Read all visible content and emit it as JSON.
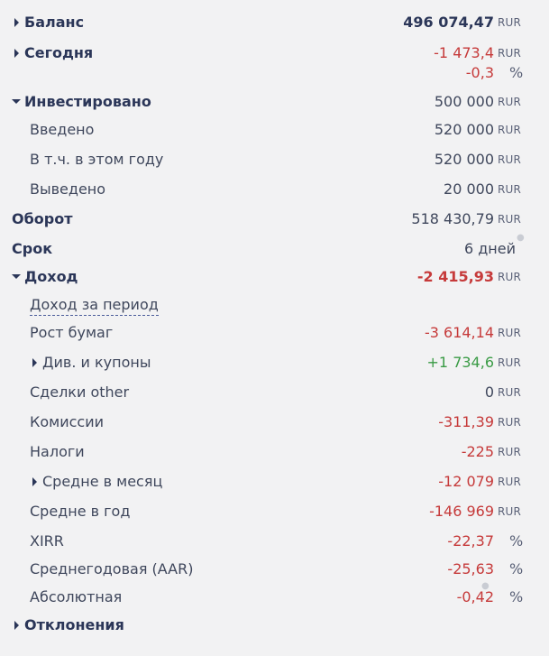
{
  "rows": {
    "balance": {
      "label": "Баланс",
      "value": "496 074,47",
      "unit": "RUR"
    },
    "today": {
      "label": "Сегодня",
      "value": "-1 473,4",
      "unit": "RUR",
      "value2": "-0,3",
      "unit2": "%"
    },
    "invested": {
      "label": "Инвестировано",
      "value": "500 000",
      "unit": "RUR"
    },
    "deposited": {
      "label": "Введено",
      "value": "520 000",
      "unit": "RUR"
    },
    "this_year": {
      "label": "В т.ч. в этом году",
      "value": "520 000",
      "unit": "RUR"
    },
    "withdrawn": {
      "label": "Выведено",
      "value": "20 000",
      "unit": "RUR"
    },
    "turnover": {
      "label": "Оборот",
      "value": "518 430,79",
      "unit": "RUR"
    },
    "term": {
      "label": "Срок",
      "value": "6 дней"
    },
    "income": {
      "label": "Доход",
      "value": "-2 415,93",
      "unit": "RUR"
    },
    "income_period": {
      "label": "Доход за период"
    },
    "securities": {
      "label": "Рост бумаг",
      "value": "-3 614,14",
      "unit": "RUR"
    },
    "dividends": {
      "label": "Див. и купоны",
      "value": "+1 734,6",
      "unit": "RUR"
    },
    "other": {
      "label": "Сделки other",
      "value": "0",
      "unit": "RUR"
    },
    "commissions": {
      "label": "Комиссии",
      "value": "-311,39",
      "unit": "RUR"
    },
    "taxes": {
      "label": "Налоги",
      "value": "-225",
      "unit": "RUR"
    },
    "avg_month": {
      "label": "Средне в месяц",
      "value": "-12 079",
      "unit": "RUR"
    },
    "avg_year": {
      "label": "Средне в год",
      "value": "-146 969",
      "unit": "RUR"
    },
    "xirr": {
      "label": "XIRR",
      "value": "-22,37",
      "unit": "%"
    },
    "aar": {
      "label": "Среднегодовая (AAR)",
      "value": "-25,63",
      "unit": "%"
    },
    "absolute": {
      "label": "Абсолютная",
      "value": "-0,42",
      "unit": "%"
    },
    "deviations": {
      "label": "Отклонения"
    }
  },
  "colors": {
    "negative": "#c63a3a",
    "positive": "#3a9b45",
    "heading": "#2b3658"
  }
}
